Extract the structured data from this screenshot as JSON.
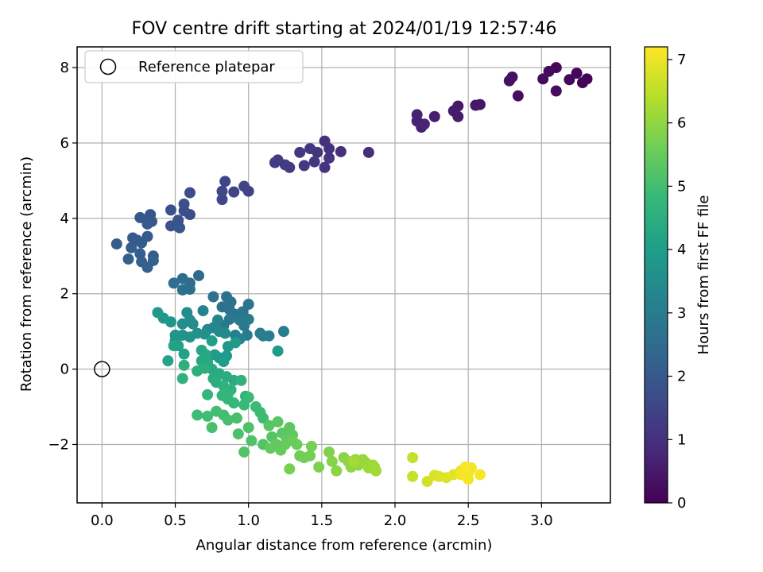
{
  "chart_data": {
    "type": "scatter",
    "title": "FOV centre drift starting at 2024/01/19 12:57:46",
    "xlabel": "Angular distance from reference (arcmin)",
    "ylabel": "Rotation from reference (arcmin)",
    "xlim": [
      -0.17,
      3.47
    ],
    "ylim": [
      -3.55,
      8.55
    ],
    "xticks": [
      0.0,
      0.5,
      1.0,
      1.5,
      2.0,
      2.5,
      3.0
    ],
    "xtick_labels": [
      "0.0",
      "0.5",
      "1.0",
      "1.5",
      "2.0",
      "2.5",
      "3.0"
    ],
    "yticks": [
      -2,
      0,
      2,
      4,
      6,
      8
    ],
    "ytick_labels": [
      "−2",
      "0",
      "2",
      "4",
      "6",
      "8"
    ],
    "grid": true,
    "legend": {
      "position": "top-left",
      "entries": [
        "Reference platepar"
      ]
    },
    "reference_point": {
      "x": 0.0,
      "y": 0.0,
      "marker": "open-circle"
    },
    "colorbar": {
      "label": "Hours from first FF file",
      "colormap": "viridis",
      "range": [
        0,
        7.2
      ],
      "ticks": [
        0,
        1,
        2,
        3,
        4,
        5,
        6,
        7
      ],
      "tick_labels": [
        "0",
        "1",
        "2",
        "3",
        "4",
        "5",
        "6",
        "7"
      ]
    },
    "colormap_stops": [
      "#440154",
      "#482878",
      "#3e4989",
      "#31688e",
      "#26828e",
      "#1f9e89",
      "#35b779",
      "#6ece58",
      "#b5de2b",
      "#fde725"
    ],
    "points": [
      [
        3.28,
        7.6,
        0.05
      ],
      [
        3.31,
        7.7,
        0.08
      ],
      [
        3.24,
        7.85,
        0.1
      ],
      [
        3.19,
        7.68,
        0.12
      ],
      [
        3.1,
        8.0,
        0.15
      ],
      [
        3.05,
        7.9,
        0.18
      ],
      [
        3.01,
        7.7,
        0.2
      ],
      [
        3.1,
        7.38,
        0.22
      ],
      [
        2.84,
        7.25,
        0.26
      ],
      [
        2.8,
        7.75,
        0.3
      ],
      [
        2.78,
        7.65,
        0.33
      ],
      [
        2.58,
        7.02,
        0.42
      ],
      [
        2.55,
        7.0,
        0.45
      ],
      [
        2.43,
        6.98,
        0.5
      ],
      [
        2.4,
        6.85,
        0.52
      ],
      [
        2.43,
        6.7,
        0.55
      ],
      [
        2.27,
        6.7,
        0.6
      ],
      [
        2.18,
        6.42,
        0.65
      ],
      [
        2.15,
        6.58,
        0.68
      ],
      [
        2.15,
        6.75,
        0.7
      ],
      [
        2.2,
        6.5,
        0.72
      ],
      [
        1.82,
        5.75,
        0.95
      ],
      [
        1.63,
        5.77,
        1.0
      ],
      [
        1.55,
        5.85,
        1.02
      ],
      [
        1.52,
        6.05,
        1.05
      ],
      [
        1.55,
        5.6,
        1.08
      ],
      [
        1.52,
        5.35,
        1.1
      ],
      [
        1.47,
        5.75,
        1.12
      ],
      [
        1.45,
        5.5,
        1.15
      ],
      [
        1.42,
        5.85,
        1.18
      ],
      [
        1.38,
        5.4,
        1.2
      ],
      [
        1.35,
        5.75,
        1.22
      ],
      [
        1.28,
        5.35,
        1.25
      ],
      [
        1.25,
        5.42,
        1.28
      ],
      [
        1.2,
        5.55,
        1.3
      ],
      [
        1.18,
        5.48,
        1.32
      ],
      [
        1.0,
        4.72,
        1.45
      ],
      [
        0.97,
        4.85,
        1.48
      ],
      [
        0.9,
        4.7,
        1.5
      ],
      [
        0.84,
        4.98,
        1.52
      ],
      [
        0.82,
        4.72,
        1.55
      ],
      [
        0.82,
        4.5,
        1.58
      ],
      [
        0.6,
        4.68,
        1.68
      ],
      [
        0.6,
        4.1,
        1.72
      ],
      [
        0.56,
        4.2,
        1.75
      ],
      [
        0.56,
        4.38,
        1.78
      ],
      [
        0.47,
        4.22,
        1.8
      ],
      [
        0.52,
        3.95,
        1.82
      ],
      [
        0.52,
        3.78,
        1.85
      ],
      [
        0.47,
        3.8,
        1.87
      ],
      [
        0.53,
        3.75,
        1.9
      ],
      [
        0.33,
        4.1,
        1.92
      ],
      [
        0.31,
        3.98,
        1.94
      ],
      [
        0.34,
        3.92,
        1.96
      ],
      [
        0.26,
        4.02,
        1.98
      ],
      [
        0.31,
        3.85,
        2.0
      ],
      [
        0.31,
        3.52,
        2.02
      ],
      [
        0.24,
        3.42,
        2.04
      ],
      [
        0.21,
        3.48,
        2.06
      ],
      [
        0.27,
        3.35,
        2.08
      ],
      [
        0.1,
        3.32,
        2.1
      ],
      [
        0.2,
        3.22,
        2.12
      ],
      [
        0.35,
        3.0,
        2.14
      ],
      [
        0.26,
        3.06,
        2.16
      ],
      [
        0.18,
        2.92,
        2.18
      ],
      [
        0.27,
        2.85,
        2.2
      ],
      [
        0.35,
        2.88,
        2.22
      ],
      [
        0.31,
        2.7,
        2.24
      ],
      [
        0.66,
        2.48,
        2.5
      ],
      [
        0.6,
        2.28,
        2.52
      ],
      [
        0.55,
        2.4,
        2.55
      ],
      [
        0.49,
        2.28,
        2.58
      ],
      [
        0.55,
        2.1,
        2.6
      ],
      [
        0.6,
        2.12,
        2.62
      ],
      [
        0.76,
        1.92,
        2.65
      ],
      [
        0.85,
        1.92,
        2.68
      ],
      [
        0.88,
        1.78,
        2.7
      ],
      [
        0.82,
        1.65,
        2.72
      ],
      [
        0.87,
        1.58,
        2.75
      ],
      [
        0.91,
        1.45,
        2.78
      ],
      [
        1.0,
        1.72,
        2.8
      ],
      [
        0.96,
        1.52,
        2.82
      ],
      [
        0.97,
        1.35,
        2.85
      ],
      [
        0.87,
        1.32,
        2.88
      ],
      [
        0.83,
        1.15,
        2.9
      ],
      [
        0.94,
        1.3,
        2.92
      ],
      [
        0.97,
        1.15,
        2.95
      ],
      [
        0.99,
        0.9,
        2.98
      ],
      [
        1.0,
        1.32,
        3.0
      ],
      [
        1.08,
        0.95,
        3.02
      ],
      [
        1.1,
        0.88,
        3.05
      ],
      [
        1.24,
        1.0,
        3.08
      ],
      [
        1.14,
        0.88,
        3.1
      ],
      [
        0.91,
        0.9,
        3.12
      ],
      [
        0.94,
        0.8,
        3.15
      ],
      [
        0.69,
        1.55,
        3.2
      ],
      [
        0.79,
        1.3,
        3.25
      ],
      [
        0.76,
        1.1,
        3.3
      ],
      [
        0.72,
        1.05,
        3.35
      ],
      [
        0.8,
        1.0,
        3.38
      ],
      [
        0.84,
        0.95,
        3.42
      ],
      [
        0.62,
        1.2,
        3.45
      ],
      [
        0.58,
        1.5,
        3.48
      ],
      [
        0.55,
        1.2,
        3.52
      ],
      [
        0.6,
        1.3,
        3.55
      ],
      [
        0.7,
        0.93,
        3.58
      ],
      [
        0.65,
        0.95,
        3.62
      ],
      [
        0.6,
        0.85,
        3.65
      ],
      [
        0.55,
        0.9,
        3.68
      ],
      [
        0.5,
        0.9,
        3.72
      ],
      [
        0.5,
        0.75,
        3.75
      ],
      [
        0.47,
        1.25,
        3.78
      ],
      [
        0.42,
        1.35,
        3.8
      ],
      [
        0.38,
        1.5,
        3.82
      ],
      [
        0.86,
        0.6,
        3.85
      ],
      [
        0.91,
        0.7,
        3.88
      ],
      [
        1.2,
        0.48,
        3.9
      ],
      [
        0.85,
        0.35,
        3.92
      ],
      [
        0.8,
        0.3,
        3.95
      ],
      [
        0.77,
        0.38,
        3.98
      ],
      [
        0.83,
        0.2,
        4.0
      ],
      [
        0.75,
        0.75,
        4.05
      ],
      [
        0.52,
        0.62,
        4.1
      ],
      [
        0.56,
        0.4,
        4.12
      ],
      [
        0.49,
        0.62,
        4.15
      ],
      [
        0.45,
        0.22,
        4.2
      ],
      [
        0.68,
        0.5,
        4.25
      ],
      [
        0.71,
        0.38,
        4.28
      ],
      [
        0.68,
        0.22,
        4.3
      ],
      [
        0.72,
        0.18,
        4.32
      ],
      [
        0.75,
        0.0,
        4.35
      ],
      [
        0.8,
        -0.12,
        4.38
      ],
      [
        0.85,
        -0.2,
        4.4
      ],
      [
        0.9,
        -0.3,
        4.42
      ],
      [
        0.76,
        -0.25,
        4.45
      ],
      [
        0.78,
        -0.35,
        4.48
      ],
      [
        0.7,
        0.02,
        4.5
      ],
      [
        0.65,
        -0.05,
        4.52
      ],
      [
        0.56,
        0.1,
        4.55
      ],
      [
        0.55,
        -0.25,
        4.58
      ],
      [
        0.83,
        -0.45,
        4.6
      ],
      [
        0.88,
        -0.55,
        4.62
      ],
      [
        0.95,
        -0.3,
        4.65
      ],
      [
        0.98,
        -0.72,
        4.68
      ],
      [
        0.86,
        -0.65,
        4.7
      ],
      [
        0.82,
        -0.7,
        4.72
      ],
      [
        0.72,
        -0.68,
        4.75
      ],
      [
        0.86,
        -0.8,
        4.78
      ],
      [
        0.9,
        -0.9,
        4.8
      ],
      [
        0.97,
        -0.95,
        4.82
      ],
      [
        1.0,
        -0.75,
        4.85
      ],
      [
        1.05,
        -1.0,
        4.88
      ],
      [
        1.08,
        -1.15,
        4.9
      ],
      [
        1.1,
        -1.3,
        4.92
      ],
      [
        0.65,
        -1.22,
        4.95
      ],
      [
        0.72,
        -1.25,
        4.98
      ],
      [
        0.78,
        -1.12,
        5.0
      ],
      [
        0.83,
        -1.22,
        5.02
      ],
      [
        0.86,
        -1.35,
        5.05
      ],
      [
        0.92,
        -1.3,
        5.08
      ],
      [
        0.75,
        -1.55,
        5.1
      ],
      [
        0.93,
        -1.72,
        5.12
      ],
      [
        1.0,
        -1.55,
        5.15
      ],
      [
        1.02,
        -1.9,
        5.18
      ],
      [
        0.97,
        -2.2,
        5.2
      ],
      [
        1.1,
        -2.0,
        5.22
      ],
      [
        1.16,
        -1.8,
        5.25
      ],
      [
        1.14,
        -1.5,
        5.28
      ],
      [
        1.2,
        -1.4,
        5.3
      ],
      [
        1.23,
        -1.7,
        5.32
      ],
      [
        1.28,
        -1.55,
        5.35
      ],
      [
        1.3,
        -1.75,
        5.38
      ],
      [
        1.26,
        -1.88,
        5.4
      ],
      [
        1.19,
        -2.0,
        5.42
      ],
      [
        1.15,
        -2.1,
        5.45
      ],
      [
        1.22,
        -2.15,
        5.48
      ],
      [
        1.25,
        -2.0,
        5.5
      ],
      [
        1.3,
        -1.9,
        5.52
      ],
      [
        1.33,
        -2.0,
        5.55
      ],
      [
        1.35,
        -2.3,
        5.6
      ],
      [
        1.38,
        -2.35,
        5.62
      ],
      [
        1.42,
        -2.3,
        5.65
      ],
      [
        1.43,
        -2.05,
        5.68
      ],
      [
        1.28,
        -2.65,
        5.7
      ],
      [
        1.48,
        -2.6,
        5.75
      ],
      [
        1.55,
        -2.2,
        5.8
      ],
      [
        1.57,
        -2.45,
        5.85
      ],
      [
        1.6,
        -2.7,
        5.9
      ],
      [
        1.65,
        -2.35,
        5.92
      ],
      [
        1.68,
        -2.45,
        5.95
      ],
      [
        1.7,
        -2.6,
        5.98
      ],
      [
        1.73,
        -2.4,
        6.0
      ],
      [
        1.75,
        -2.55,
        6.02
      ],
      [
        1.78,
        -2.4,
        6.05
      ],
      [
        1.8,
        -2.48,
        6.08
      ],
      [
        1.82,
        -2.62,
        6.1
      ],
      [
        1.85,
        -2.55,
        6.12
      ],
      [
        1.87,
        -2.7,
        6.15
      ],
      [
        1.86,
        -2.6,
        6.18
      ],
      [
        1.72,
        -2.45,
        6.2
      ],
      [
        2.12,
        -2.35,
        6.55
      ],
      [
        2.12,
        -2.85,
        6.6
      ],
      [
        2.22,
        -2.98,
        6.7
      ],
      [
        2.27,
        -2.82,
        6.75
      ],
      [
        2.3,
        -2.85,
        6.8
      ],
      [
        2.35,
        -2.88,
        6.85
      ],
      [
        2.4,
        -2.8,
        6.9
      ],
      [
        2.45,
        -2.7,
        6.95
      ],
      [
        2.47,
        -2.65,
        7.0
      ],
      [
        2.5,
        -2.75,
        7.02
      ],
      [
        2.52,
        -2.62,
        7.05
      ],
      [
        2.45,
        -2.8,
        7.08
      ],
      [
        2.5,
        -2.92,
        7.1
      ],
      [
        2.58,
        -2.8,
        7.12
      ],
      [
        2.48,
        -2.6,
        7.15
      ]
    ]
  }
}
